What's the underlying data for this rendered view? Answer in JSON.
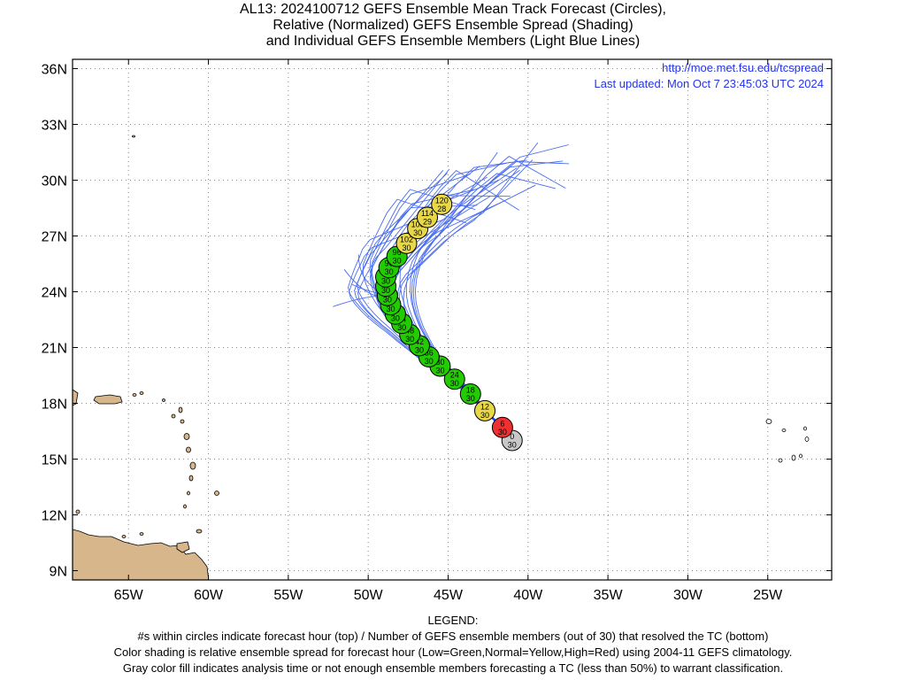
{
  "title": {
    "line1": "AL13: 2024100712 GEFS Ensemble Mean Track Forecast (Circles),",
    "line2": "Relative (Normalized) GEFS Ensemble Spread (Shading)",
    "line3": "and Individual GEFS Ensemble Members (Light Blue Lines)"
  },
  "info": {
    "url": "http://moe.met.fsu.edu/tcspread",
    "updated": "Last updated: Mon Oct 7 23:45:03 UTC 2024"
  },
  "axes": {
    "lat_labels": [
      "36N",
      "33N",
      "30N",
      "27N",
      "24N",
      "21N",
      "18N",
      "15N",
      "12N",
      "9N"
    ],
    "lon_labels": [
      "65W",
      "60W",
      "55W",
      "50W",
      "45W",
      "40W",
      "35W",
      "30W",
      "25W"
    ],
    "lat_range": [
      8.5,
      36.5
    ],
    "lon_range": [
      -68.5,
      -21.0
    ],
    "grid": "dotted"
  },
  "colors": {
    "analysis": "#c8c8c8",
    "low": "#22cc00",
    "normal": "#e8d848",
    "high": "#ee3030",
    "member_line": "#4a6cf0",
    "land": "#d6b68a",
    "link": "#2233ee"
  },
  "mean_track": [
    {
      "hour": "0",
      "members": "30",
      "lon": -41.0,
      "lat": 16.0,
      "spread": "analysis"
    },
    {
      "hour": "6",
      "members": "30",
      "lon": -41.6,
      "lat": 16.7,
      "spread": "high"
    },
    {
      "hour": "12",
      "members": "30",
      "lon": -42.7,
      "lat": 17.6,
      "spread": "normal"
    },
    {
      "hour": "18",
      "members": "30",
      "lon": -43.6,
      "lat": 18.5,
      "spread": "low"
    },
    {
      "hour": "24",
      "members": "30",
      "lon": -44.6,
      "lat": 19.3,
      "spread": "low"
    },
    {
      "hour": "30",
      "members": "30",
      "lon": -45.5,
      "lat": 20.0,
      "spread": "low"
    },
    {
      "hour": "36",
      "members": "30",
      "lon": -46.2,
      "lat": 20.5,
      "spread": "low"
    },
    {
      "hour": "42",
      "members": "30",
      "lon": -46.8,
      "lat": 21.1,
      "spread": "low"
    },
    {
      "hour": "48",
      "members": "30",
      "lon": -47.4,
      "lat": 21.7,
      "spread": "low"
    },
    {
      "hour": "54",
      "members": "30",
      "lon": -47.9,
      "lat": 22.3,
      "spread": "low"
    },
    {
      "hour": "60",
      "members": "30",
      "lon": -48.3,
      "lat": 22.8,
      "spread": "low"
    },
    {
      "hour": "66",
      "members": "30",
      "lon": -48.6,
      "lat": 23.3,
      "spread": "low"
    },
    {
      "hour": "72",
      "members": "30",
      "lon": -48.8,
      "lat": 23.8,
      "spread": "low"
    },
    {
      "hour": "78",
      "members": "30",
      "lon": -48.9,
      "lat": 24.3,
      "spread": "low"
    },
    {
      "hour": "84",
      "members": "30",
      "lon": -48.9,
      "lat": 24.8,
      "spread": "low"
    },
    {
      "hour": "90",
      "members": "30",
      "lon": -48.7,
      "lat": 25.3,
      "spread": "low"
    },
    {
      "hour": "96",
      "members": "30",
      "lon": -48.2,
      "lat": 25.9,
      "spread": "low"
    },
    {
      "hour": "102",
      "members": "30",
      "lon": -47.6,
      "lat": 26.6,
      "spread": "normal"
    },
    {
      "hour": "108",
      "members": "30",
      "lon": -46.9,
      "lat": 27.4,
      "spread": "normal"
    },
    {
      "hour": "114",
      "members": "29",
      "lon": -46.3,
      "lat": 28.0,
      "spread": "normal"
    },
    {
      "hour": "120",
      "members": "28",
      "lon": -45.4,
      "lat": 28.7,
      "spread": "normal"
    }
  ],
  "legend": {
    "heading": "LEGEND:",
    "line1": "#s within circles indicate forecast hour (top) / Number of GEFS ensemble members (out of 30) that resolved the TC (bottom)",
    "line2": "Color shading is relative ensemble spread for forecast hour (Low=Green,Normal=Yellow,High=Red) using 2004-11 GEFS climatology.",
    "line3": "Gray color fill indicates analysis time or not enough ensemble members forecasting a TC (less than 50%) to warrant classification."
  }
}
